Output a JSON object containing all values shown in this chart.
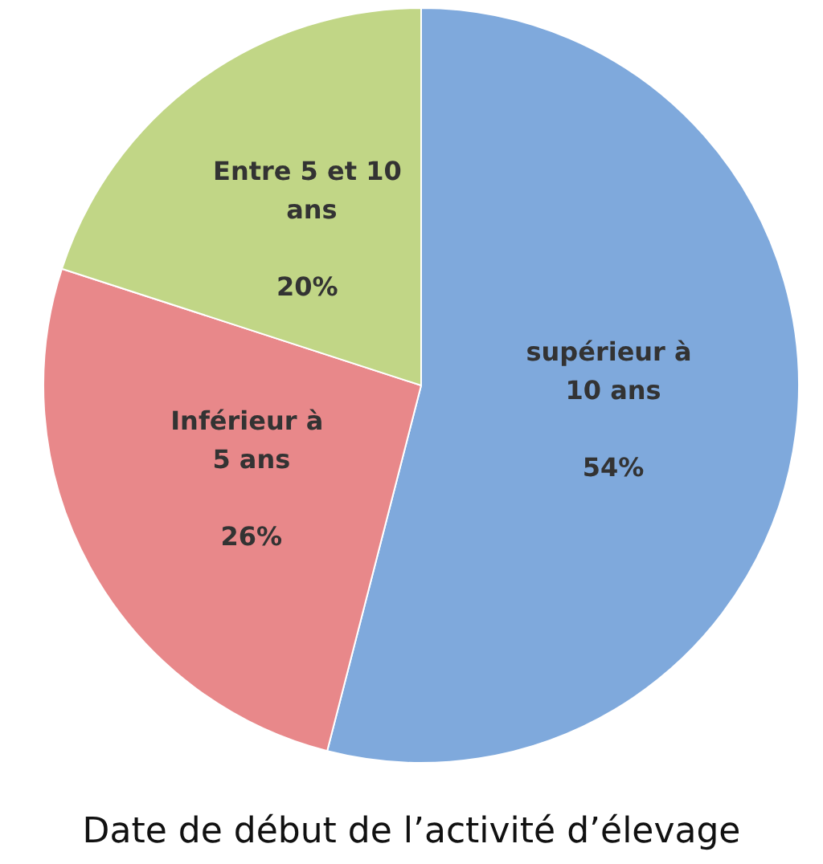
{
  "chart_data": {
    "type": "pie",
    "title": "Date de début de l’activité d’élevage",
    "categories": [
      "supérieur à 10 ans",
      "Inférieur à 5 ans",
      "Entre 5 et 10 ans"
    ],
    "values": [
      54,
      26,
      20
    ],
    "value_labels": [
      "54%",
      "26%",
      "20%"
    ],
    "colors": [
      "#7fa9dc",
      "#e8888a",
      "#c1d686"
    ]
  }
}
